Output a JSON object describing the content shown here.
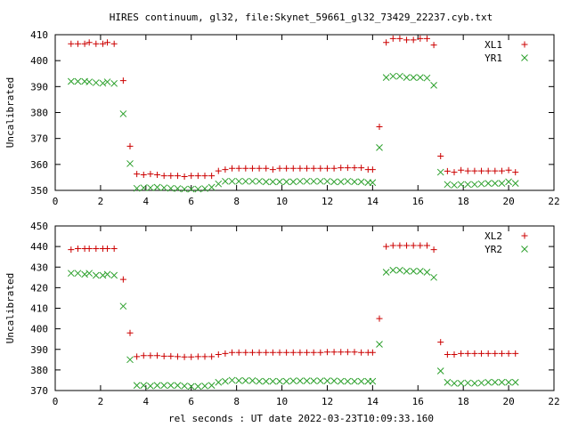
{
  "title": "HIRES continuum, gl32, file:Skynet_59661_gl32_73429_22237.cyb.txt",
  "xlabel": "rel seconds : UT date 2022-03-23T10:09:33.160",
  "colors": {
    "red": "#cc0000",
    "green": "#2ca02c",
    "axis": "#000000"
  },
  "chart_data": [
    {
      "type": "scatter",
      "ylabel": "Uncalibrated",
      "xlim": [
        0,
        22
      ],
      "ylim": [
        350,
        410
      ],
      "xticks": [
        0,
        2,
        4,
        6,
        8,
        10,
        12,
        14,
        16,
        18,
        20,
        22
      ],
      "yticks": [
        350,
        360,
        370,
        380,
        390,
        400,
        410
      ],
      "legend": "top-right",
      "series": [
        {
          "name": "XL1",
          "marker": "plus",
          "color": "#cc0000",
          "x": [
            0.7,
            1.0,
            1.3,
            1.5,
            1.8,
            2.1,
            2.3,
            2.6,
            3.0,
            3.3,
            3.6,
            3.9,
            4.2,
            4.5,
            4.8,
            5.1,
            5.4,
            5.7,
            6.0,
            6.3,
            6.6,
            6.9,
            7.2,
            7.5,
            7.8,
            8.1,
            8.4,
            8.7,
            9.0,
            9.3,
            9.6,
            9.9,
            10.2,
            10.5,
            10.8,
            11.1,
            11.4,
            11.7,
            12.0,
            12.3,
            12.6,
            12.9,
            13.2,
            13.5,
            13.8,
            14.0,
            14.3,
            14.6,
            14.9,
            15.2,
            15.5,
            15.8,
            16.1,
            16.4,
            16.7,
            17.0,
            17.3,
            17.6,
            17.9,
            18.2,
            18.5,
            18.8,
            19.1,
            19.4,
            19.7,
            20.0,
            20.3
          ],
          "y": [
            406.5,
            406.5,
            406.5,
            407,
            406.5,
            406.5,
            407,
            406.5,
            392.3,
            367,
            356.3,
            356,
            356.3,
            356,
            355.6,
            355.6,
            355.6,
            355.3,
            355.6,
            355.6,
            355.6,
            355.6,
            357.5,
            358,
            358.5,
            358.5,
            358.5,
            358.5,
            358.5,
            358.5,
            358,
            358.5,
            358.5,
            358.5,
            358.5,
            358.5,
            358.5,
            358.5,
            358.5,
            358.5,
            358.7,
            358.7,
            358.7,
            358.7,
            358,
            358,
            374.5,
            407,
            408.5,
            408.5,
            408,
            408,
            408.5,
            408.5,
            406,
            363.2,
            357.4,
            357,
            357.8,
            357.5,
            357.5,
            357.5,
            357.5,
            357.5,
            357.5,
            357.8,
            357
          ]
        },
        {
          "name": "YR1",
          "marker": "cross",
          "color": "#2ca02c",
          "x": [
            0.7,
            1.0,
            1.3,
            1.5,
            1.8,
            2.1,
            2.3,
            2.6,
            3.0,
            3.3,
            3.6,
            3.9,
            4.2,
            4.5,
            4.8,
            5.1,
            5.4,
            5.7,
            6.0,
            6.3,
            6.6,
            6.9,
            7.2,
            7.5,
            7.8,
            8.1,
            8.4,
            8.7,
            9.0,
            9.3,
            9.6,
            9.9,
            10.2,
            10.5,
            10.8,
            11.1,
            11.4,
            11.7,
            12.0,
            12.3,
            12.6,
            12.9,
            13.2,
            13.5,
            13.8,
            14.0,
            14.3,
            14.6,
            14.9,
            15.2,
            15.5,
            15.8,
            16.1,
            16.4,
            16.7,
            17.0,
            17.3,
            17.6,
            17.9,
            18.2,
            18.5,
            18.8,
            19.1,
            19.4,
            19.7,
            20.0,
            20.3
          ],
          "y": [
            392,
            392,
            392,
            391.8,
            391.5,
            391.3,
            391.8,
            391.2,
            379.5,
            360.3,
            350.8,
            351,
            351,
            351.2,
            351,
            350.8,
            350.7,
            350.5,
            350.5,
            350.5,
            350.7,
            351.2,
            352.5,
            353.5,
            353.5,
            353.5,
            353.5,
            353.5,
            353.5,
            353.3,
            353.3,
            353.3,
            353.3,
            353.3,
            353.5,
            353.5,
            353.5,
            353.5,
            353.5,
            353.3,
            353.3,
            353.5,
            353.3,
            353.3,
            353,
            353,
            366.5,
            393.5,
            394,
            394,
            393.5,
            393.5,
            393.5,
            393.3,
            390.5,
            357,
            352.3,
            352,
            352.3,
            352.3,
            352.3,
            352.5,
            352.7,
            352.7,
            352.7,
            353.3,
            352.7
          ]
        }
      ]
    },
    {
      "type": "scatter",
      "ylabel": "Uncalibrated",
      "xlim": [
        0,
        22
      ],
      "ylim": [
        370,
        450
      ],
      "xticks": [
        0,
        2,
        4,
        6,
        8,
        10,
        12,
        14,
        16,
        18,
        20,
        22
      ],
      "yticks": [
        370,
        380,
        390,
        400,
        410,
        420,
        430,
        440,
        450
      ],
      "legend": "top-right",
      "series": [
        {
          "name": "XL2",
          "marker": "plus",
          "color": "#cc0000",
          "x": [
            0.7,
            1.0,
            1.3,
            1.5,
            1.8,
            2.1,
            2.3,
            2.6,
            3.0,
            3.3,
            3.6,
            3.9,
            4.2,
            4.5,
            4.8,
            5.1,
            5.4,
            5.7,
            6.0,
            6.3,
            6.6,
            6.9,
            7.2,
            7.5,
            7.8,
            8.1,
            8.4,
            8.7,
            9.0,
            9.3,
            9.6,
            9.9,
            10.2,
            10.5,
            10.8,
            11.1,
            11.4,
            11.7,
            12.0,
            12.3,
            12.6,
            12.9,
            13.2,
            13.5,
            13.8,
            14.0,
            14.3,
            14.6,
            14.9,
            15.2,
            15.5,
            15.8,
            16.1,
            16.4,
            16.7,
            17.0,
            17.3,
            17.6,
            17.9,
            18.2,
            18.5,
            18.8,
            19.1,
            19.4,
            19.7,
            20.0,
            20.3
          ],
          "y": [
            438.5,
            439,
            439,
            439,
            439,
            439,
            439,
            439,
            424,
            398,
            386.5,
            387,
            387,
            387,
            386.7,
            386.7,
            386.5,
            386.3,
            386.3,
            386.5,
            386.5,
            386.5,
            387.5,
            388,
            388.5,
            388.5,
            388.5,
            388.5,
            388.5,
            388.5,
            388.5,
            388.5,
            388.5,
            388.5,
            388.5,
            388.5,
            388.5,
            388.5,
            388.7,
            388.7,
            388.7,
            388.7,
            388.7,
            388.5,
            388.5,
            388.5,
            405,
            440,
            440.5,
            440.5,
            440.5,
            440.5,
            440.5,
            440.5,
            438.5,
            393.5,
            387.5,
            387.5,
            388,
            388,
            388,
            388,
            388,
            388,
            388,
            388,
            388
          ]
        },
        {
          "name": "YR2",
          "marker": "cross",
          "color": "#2ca02c",
          "x": [
            0.7,
            1.0,
            1.3,
            1.5,
            1.8,
            2.1,
            2.3,
            2.6,
            3.0,
            3.3,
            3.6,
            3.9,
            4.2,
            4.5,
            4.8,
            5.1,
            5.4,
            5.7,
            6.0,
            6.3,
            6.6,
            6.9,
            7.2,
            7.5,
            7.8,
            8.1,
            8.4,
            8.7,
            9.0,
            9.3,
            9.6,
            9.9,
            10.2,
            10.5,
            10.8,
            11.1,
            11.4,
            11.7,
            12.0,
            12.3,
            12.6,
            12.9,
            13.2,
            13.5,
            13.8,
            14.0,
            14.3,
            14.6,
            14.9,
            15.2,
            15.5,
            15.8,
            16.1,
            16.4,
            16.7,
            17.0,
            17.3,
            17.6,
            17.9,
            18.2,
            18.5,
            18.8,
            19.1,
            19.4,
            19.7,
            20.0,
            20.3
          ],
          "y": [
            427,
            427,
            426.5,
            427,
            426,
            426,
            426.5,
            426,
            411,
            385,
            372.5,
            372.5,
            372.2,
            372.5,
            372.5,
            372.5,
            372.5,
            372.2,
            372,
            372,
            372.2,
            372.5,
            374,
            374.5,
            375,
            374.8,
            374.8,
            374.8,
            374.5,
            374.5,
            374.5,
            374.5,
            374.5,
            374.7,
            374.7,
            374.7,
            374.7,
            374.7,
            374.7,
            374.7,
            374.5,
            374.5,
            374.5,
            374.5,
            374.5,
            374.5,
            392.5,
            427.5,
            428.5,
            428.5,
            428,
            428,
            428,
            427.5,
            425,
            379.5,
            374,
            373.5,
            373.5,
            373.7,
            373.5,
            373.7,
            374,
            374,
            374,
            374,
            374
          ]
        }
      ]
    }
  ]
}
